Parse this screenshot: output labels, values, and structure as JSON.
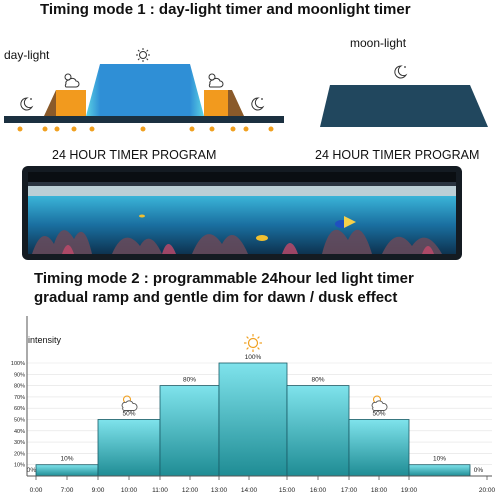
{
  "mode1": {
    "title": "Timing mode 1 : day-light timer and moonlight timer",
    "daylight_label": "day-light",
    "moonlight_label": "moon-light",
    "program_label_left": "24 HOUR TIMER PROGRAM",
    "program_label_right": "24 HOUR TIMER PROGRAM"
  },
  "mode2": {
    "title_line1": "Timing mode 2 : programmable 24hour led light timer",
    "title_line2": "gradual ramp and gentle dim for dawn / dusk effect"
  },
  "colors": {
    "day_blue": "#2f8fd6",
    "day_cyan": "#5cd3e4",
    "sunrise_orange": "#f29a1e",
    "sunrise_brown": "#8a5a2a",
    "moon_navy": "#21475e",
    "base_dark": "#1b3040",
    "ramp_teal": "#1f8c94",
    "ramp_light": "#7fe3ec",
    "tick_orange": "#f0a020"
  },
  "chart_data": {
    "type": "area",
    "ylabel": "intensity",
    "y_ticks": [
      "10%",
      "20%",
      "30%",
      "40%",
      "50%",
      "60%",
      "70%",
      "80%",
      "90%",
      "100%"
    ],
    "x_ticks": [
      "0:00",
      "7:00",
      "9:00",
      "10:00",
      "11:00",
      "12:00",
      "13:00",
      "14:00",
      "15:00",
      "16:00",
      "17:00",
      "18:00",
      "19:00",
      "20:00"
    ],
    "ylim": [
      0,
      100
    ],
    "steps": [
      {
        "label": "0%",
        "value": 0,
        "icon": ""
      },
      {
        "label": "10%",
        "value": 10,
        "icon": ""
      },
      {
        "label": "50%",
        "value": 50,
        "icon": "sun-cloud-icon"
      },
      {
        "label": "80%",
        "value": 80,
        "icon": ""
      },
      {
        "label": "100%",
        "value": 100,
        "icon": "sun-icon"
      },
      {
        "label": "80%",
        "value": 80,
        "icon": ""
      },
      {
        "label": "50%",
        "value": 50,
        "icon": "sun-cloud-icon"
      },
      {
        "label": "10%",
        "value": 10,
        "icon": ""
      },
      {
        "label": "0%",
        "value": 0,
        "icon": ""
      }
    ]
  }
}
